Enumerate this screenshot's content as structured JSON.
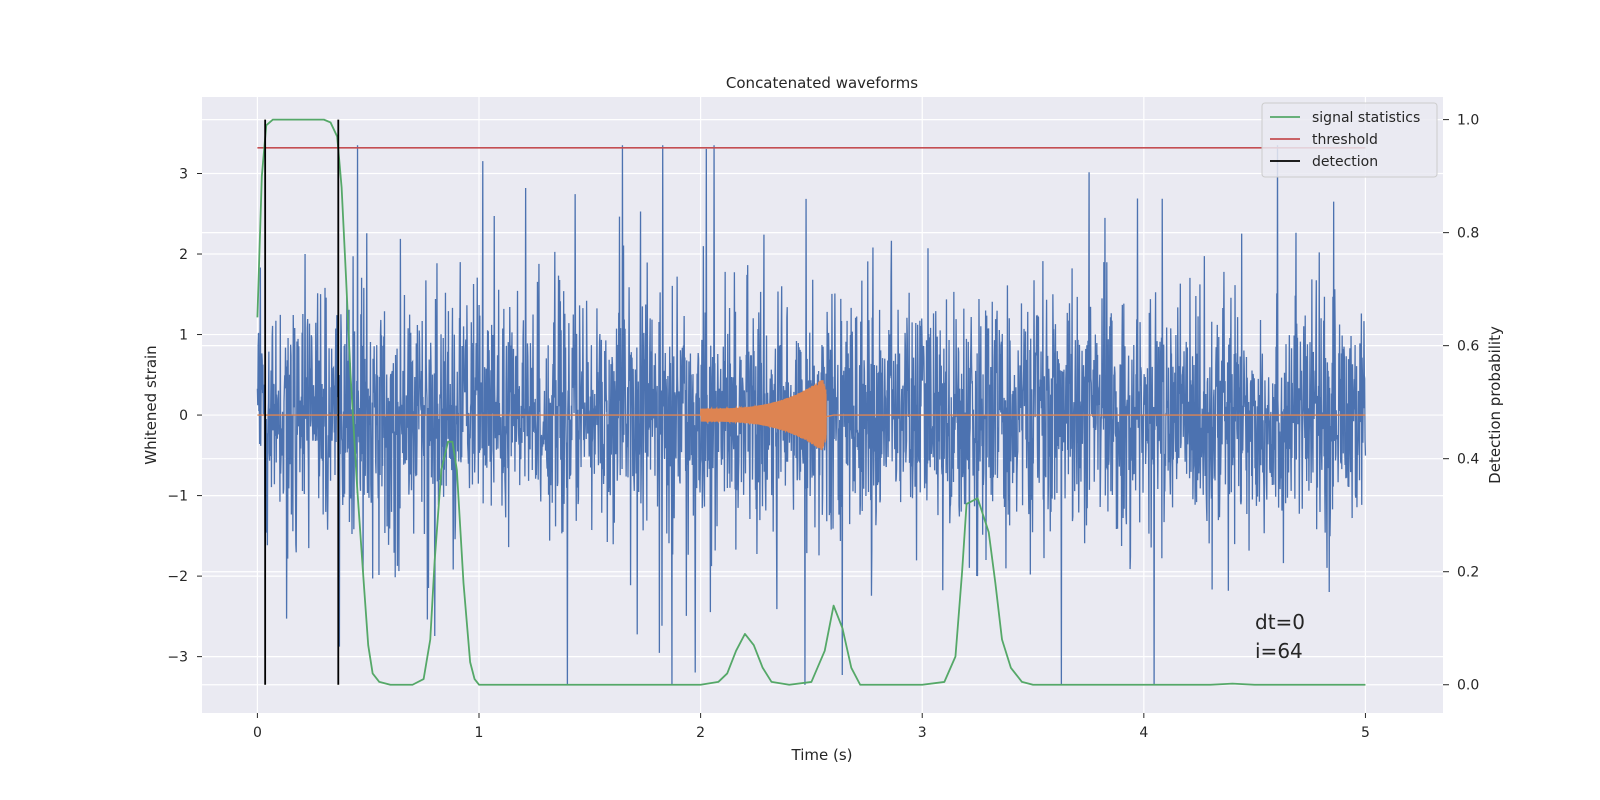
{
  "chart_data": {
    "type": "line",
    "title": "Concatenated waveforms",
    "xlabel": "Time (s)",
    "ylabel": "Whitened strain",
    "y2label": "Detection probability",
    "xlim": [
      -0.25,
      5.35
    ],
    "ylim": [
      -3.7,
      3.95
    ],
    "y2lim": [
      -0.05,
      1.04
    ],
    "x_ticks": [
      0,
      1,
      2,
      3,
      4,
      5
    ],
    "y_ticks": [
      -3,
      -2,
      -1,
      0,
      1,
      2,
      3
    ],
    "y2_ticks": [
      0.0,
      0.2,
      0.4,
      0.6,
      0.8,
      1.0
    ],
    "x_tick_labels": [
      "0",
      "1",
      "2",
      "3",
      "4",
      "5"
    ],
    "y_tick_labels": [
      "−3",
      "−2",
      "−1",
      "0",
      "1",
      "2",
      "3"
    ],
    "y2_tick_labels": [
      "0.0",
      "0.2",
      "0.4",
      "0.6",
      "0.8",
      "1.0"
    ],
    "grid": true,
    "legend_position": "top-right",
    "legend": [
      "signal statistics",
      "threshold",
      "detection"
    ],
    "annotations": [
      "dt=0",
      "i=64"
    ],
    "colors": {
      "strain": "#4c72b0",
      "injection": "#dd8452",
      "signal_statistics": "#55a868",
      "threshold": "#c44e52",
      "detection": "#000000",
      "plot_background": "#eaeaf2",
      "grid": "#ffffff"
    },
    "series": [
      {
        "name": "",
        "axis": "left",
        "description_type": "whitened noise strain, 0 to 5 s, peaks up to about 3.3, troughs to about -3.3"
      },
      {
        "name": "",
        "axis": "left",
        "chirp": {
          "start": 2.0,
          "peak": 2.55,
          "end": 2.6,
          "max_amplitude": 0.45
        }
      },
      {
        "name": "signal statistics",
        "axis": "right",
        "x": [
          0.0,
          0.02,
          0.04,
          0.07,
          0.1,
          0.15,
          0.2,
          0.25,
          0.3,
          0.33,
          0.36,
          0.38,
          0.4,
          0.42,
          0.45,
          0.48,
          0.5,
          0.52,
          0.55,
          0.6,
          0.7,
          0.75,
          0.78,
          0.8,
          0.83,
          0.86,
          0.88,
          0.9,
          0.93,
          0.96,
          0.98,
          1.0,
          1.2,
          1.6,
          2.0,
          2.08,
          2.12,
          2.16,
          2.2,
          2.24,
          2.28,
          2.32,
          2.4,
          2.5,
          2.56,
          2.6,
          2.64,
          2.68,
          2.72,
          2.8,
          3.0,
          3.1,
          3.15,
          3.18,
          3.2,
          3.25,
          3.3,
          3.33,
          3.36,
          3.4,
          3.45,
          3.5,
          3.7,
          4.0,
          4.3,
          4.4,
          4.5,
          4.8,
          5.0
        ],
        "y": [
          0.65,
          0.9,
          0.99,
          1.0,
          1.0,
          1.0,
          1.0,
          1.0,
          1.0,
          0.995,
          0.97,
          0.88,
          0.72,
          0.55,
          0.35,
          0.18,
          0.07,
          0.02,
          0.005,
          0.0,
          0.0,
          0.01,
          0.08,
          0.22,
          0.38,
          0.43,
          0.43,
          0.38,
          0.18,
          0.04,
          0.01,
          0.0,
          0.0,
          0.0,
          0.0,
          0.005,
          0.02,
          0.06,
          0.09,
          0.07,
          0.03,
          0.005,
          0.0,
          0.005,
          0.06,
          0.14,
          0.1,
          0.03,
          0.0,
          0.0,
          0.0,
          0.005,
          0.05,
          0.2,
          0.32,
          0.33,
          0.27,
          0.18,
          0.08,
          0.03,
          0.005,
          0.0,
          0.0,
          0.0,
          0.0,
          0.002,
          0.0,
          0.0,
          0.0
        ]
      },
      {
        "name": "threshold",
        "axis": "right",
        "x": [
          0.0,
          5.0
        ],
        "y": [
          0.95,
          0.95
        ]
      },
      {
        "name": "detection",
        "axis": "right",
        "x_positions": [
          0.035,
          0.365
        ],
        "y_range": [
          0.0,
          1.0
        ]
      }
    ]
  }
}
